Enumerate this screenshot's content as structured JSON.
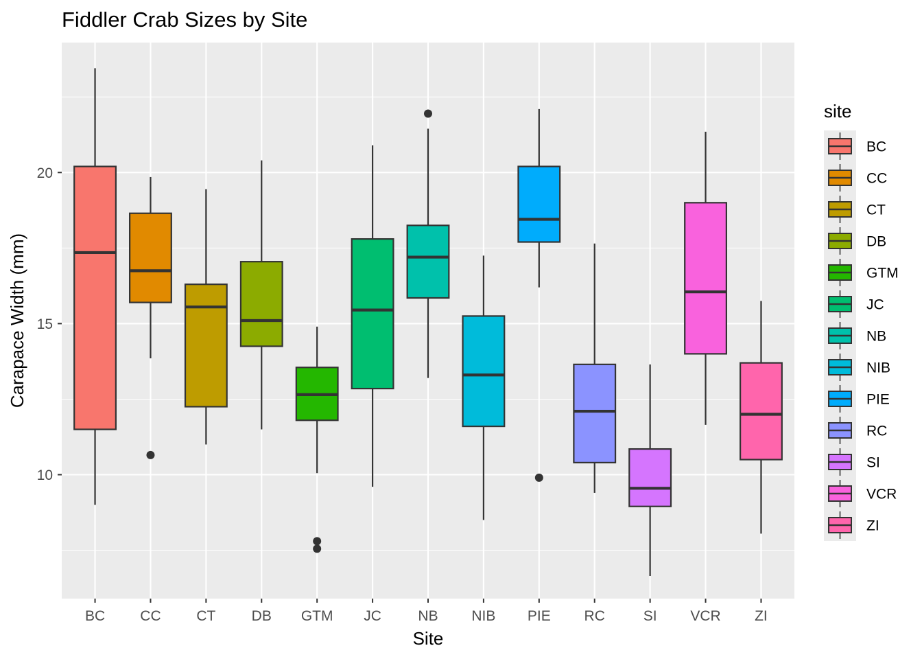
{
  "chart_data": {
    "type": "box",
    "title": "Fiddler Crab Sizes by Site",
    "xlabel": "Site",
    "ylabel": "Carapace Width (mm)",
    "ylim": [
      5.9,
      24.3
    ],
    "y_ticks": [
      10,
      15,
      20
    ],
    "grid": true,
    "legend_title": "site",
    "legend_position": "right",
    "categories": [
      "BC",
      "CC",
      "CT",
      "DB",
      "GTM",
      "JC",
      "NB",
      "NIB",
      "PIE",
      "RC",
      "SI",
      "VCR",
      "ZI"
    ],
    "colors": [
      "#F8766D",
      "#E18A00",
      "#BE9C00",
      "#8CAB00",
      "#24B700",
      "#00BE70",
      "#00C1AB",
      "#00BBDA",
      "#00ACFC",
      "#8B93FF",
      "#D575FE",
      "#F962DD",
      "#FF65AC"
    ],
    "boxes": [
      {
        "site": "BC",
        "whisker_low": 9.0,
        "q1": 11.5,
        "median": 17.35,
        "q3": 20.2,
        "whisker_high": 23.45,
        "outliers": []
      },
      {
        "site": "CC",
        "whisker_low": 13.85,
        "q1": 15.7,
        "median": 16.75,
        "q3": 18.65,
        "whisker_high": 19.85,
        "outliers": [
          10.65
        ]
      },
      {
        "site": "CT",
        "whisker_low": 11.0,
        "q1": 12.25,
        "median": 15.55,
        "q3": 16.3,
        "whisker_high": 19.45,
        "outliers": []
      },
      {
        "site": "DB",
        "whisker_low": 11.5,
        "q1": 14.25,
        "median": 15.1,
        "q3": 17.05,
        "whisker_high": 20.4,
        "outliers": []
      },
      {
        "site": "GTM",
        "whisker_low": 10.05,
        "q1": 11.8,
        "median": 12.65,
        "q3": 13.55,
        "whisker_high": 14.9,
        "outliers": [
          7.8,
          7.55
        ]
      },
      {
        "site": "JC",
        "whisker_low": 9.6,
        "q1": 12.85,
        "median": 15.45,
        "q3": 17.8,
        "whisker_high": 20.9,
        "outliers": []
      },
      {
        "site": "NB",
        "whisker_low": 13.2,
        "q1": 15.85,
        "median": 17.2,
        "q3": 18.25,
        "whisker_high": 21.45,
        "outliers": [
          21.95
        ]
      },
      {
        "site": "NIB",
        "whisker_low": 8.5,
        "q1": 11.6,
        "median": 13.3,
        "q3": 15.25,
        "whisker_high": 17.25,
        "outliers": []
      },
      {
        "site": "PIE",
        "whisker_low": 16.2,
        "q1": 17.7,
        "median": 18.45,
        "q3": 20.2,
        "whisker_high": 22.1,
        "outliers": [
          9.9
        ]
      },
      {
        "site": "RC",
        "whisker_low": 9.4,
        "q1": 10.4,
        "median": 12.1,
        "q3": 13.65,
        "whisker_high": 17.65,
        "outliers": []
      },
      {
        "site": "SI",
        "whisker_low": 6.65,
        "q1": 8.95,
        "median": 9.55,
        "q3": 10.85,
        "whisker_high": 13.65,
        "outliers": []
      },
      {
        "site": "VCR",
        "whisker_low": 11.65,
        "q1": 14.0,
        "median": 16.05,
        "q3": 19.0,
        "whisker_high": 21.35,
        "outliers": []
      },
      {
        "site": "ZI",
        "whisker_low": 8.05,
        "q1": 10.5,
        "median": 12.0,
        "q3": 13.7,
        "whisker_high": 15.75,
        "outliers": []
      }
    ]
  }
}
